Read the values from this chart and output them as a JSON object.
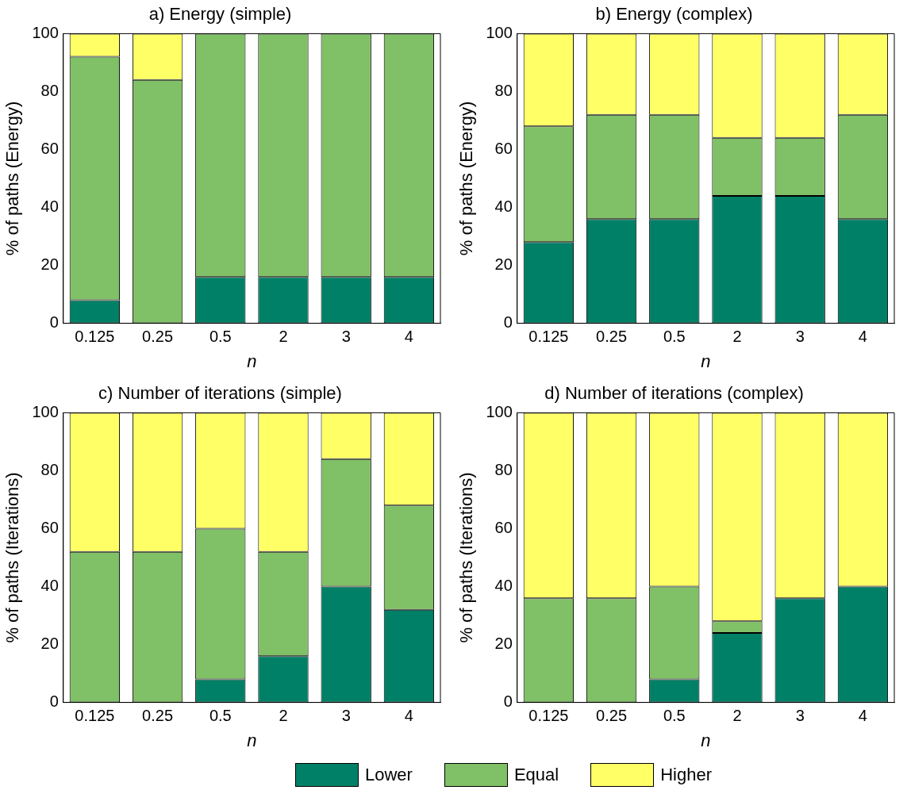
{
  "chart_data": [
    {
      "type": "bar",
      "title": "a) Energy (simple)",
      "xlabel": "n",
      "ylabel": "% of paths (Energy)",
      "categories": [
        "0.125",
        "0.25",
        "0.5",
        "2",
        "3",
        "4"
      ],
      "stacked": true,
      "ylim": [
        0,
        100
      ],
      "yticks": [
        0,
        20,
        40,
        60,
        80,
        100
      ],
      "grid": false,
      "series": [
        {
          "color": "#008066",
          "values": [
            8,
            0,
            16,
            16,
            16,
            16
          ]
        },
        {
          "color": "#80c066",
          "values": [
            84,
            84,
            84,
            84,
            84,
            84
          ]
        },
        {
          "color": "#ffff66",
          "values": [
            8,
            16,
            0,
            0,
            0,
            0
          ]
        }
      ]
    },
    {
      "type": "bar",
      "title": "b) Energy (complex)",
      "xlabel": "n",
      "ylabel": "% of paths (Energy)",
      "categories": [
        "0.125",
        "0.25",
        "0.5",
        "2",
        "3",
        "4"
      ],
      "stacked": true,
      "ylim": [
        0,
        100
      ],
      "yticks": [
        0,
        20,
        40,
        60,
        80,
        100
      ],
      "grid": false,
      "series": [
        {
          "color": "#008066",
          "values": [
            28,
            36,
            36,
            44,
            44,
            36
          ]
        },
        {
          "color": "#80c066",
          "values": [
            40,
            36,
            36,
            20,
            20,
            36
          ]
        },
        {
          "color": "#ffff66",
          "values": [
            32,
            28,
            28,
            36,
            36,
            28
          ]
        }
      ]
    },
    {
      "type": "bar",
      "title": "c) Number of iterations (simple)",
      "xlabel": "n",
      "ylabel": "% of paths (Iterations)",
      "categories": [
        "0.125",
        "0.25",
        "0.5",
        "2",
        "3",
        "4"
      ],
      "stacked": true,
      "ylim": [
        0,
        100
      ],
      "yticks": [
        0,
        20,
        40,
        60,
        80,
        100
      ],
      "grid": false,
      "series": [
        {
          "color": "#008066",
          "values": [
            0,
            0,
            8,
            16,
            40,
            32
          ]
        },
        {
          "color": "#80c066",
          "values": [
            52,
            52,
            52,
            36,
            44,
            36
          ]
        },
        {
          "color": "#ffff66",
          "values": [
            48,
            48,
            40,
            48,
            16,
            32
          ]
        }
      ]
    },
    {
      "type": "bar",
      "title": "d) Number of iterations (complex)",
      "xlabel": "n",
      "ylabel": "% of paths (Iterations)",
      "categories": [
        "0.125",
        "0.25",
        "0.5",
        "2",
        "3",
        "4"
      ],
      "stacked": true,
      "ylim": [
        0,
        100
      ],
      "yticks": [
        0,
        20,
        40,
        60,
        80,
        100
      ],
      "grid": false,
      "legend": "bottom",
      "series": [
        {
          "name": "Lower",
          "color": "#008066",
          "values": [
            0,
            0,
            8,
            24,
            36,
            40
          ]
        },
        {
          "name": "Equal",
          "color": "#80c066",
          "values": [
            36,
            36,
            32,
            4,
            0,
            0
          ]
        },
        {
          "name": "Higher",
          "color": "#ffff66",
          "values": [
            64,
            64,
            60,
            72,
            64,
            60
          ]
        }
      ]
    }
  ]
}
